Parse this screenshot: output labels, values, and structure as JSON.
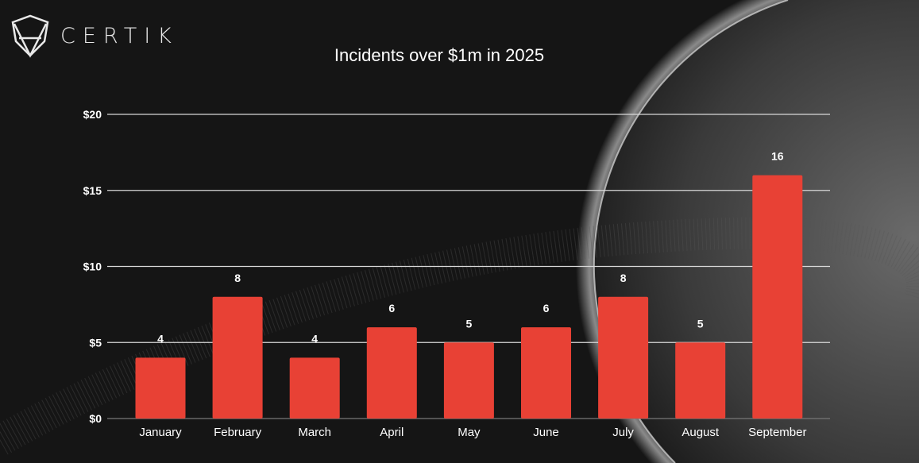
{
  "brand": {
    "logo_text": "CERTIK"
  },
  "chart_data": {
    "type": "bar",
    "title": "Incidents over $1m in 2025",
    "xlabel": "",
    "ylabel": "",
    "categories": [
      "January",
      "February",
      "March",
      "April",
      "May",
      "June",
      "July",
      "August",
      "September"
    ],
    "values": [
      4,
      8,
      4,
      6,
      5,
      6,
      8,
      5,
      16
    ],
    "data_labels": [
      "4",
      "8",
      "4",
      "6",
      "5",
      "6",
      "8",
      "5",
      "16"
    ],
    "ylim": [
      0,
      20
    ],
    "yticks": [
      0,
      5,
      10,
      15,
      20
    ],
    "ytick_labels": [
      "$0",
      "$5",
      "$10",
      "$15",
      "$20"
    ],
    "grid": true,
    "bar_color": "#e84135",
    "background": "#151515"
  }
}
